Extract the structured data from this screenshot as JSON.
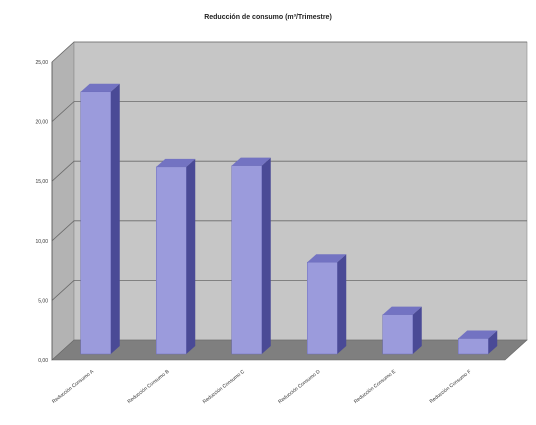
{
  "chart_data": {
    "type": "bar",
    "title": "Reducción de consumo (m³/Trimestre)",
    "categories": [
      "Reducción Consumo A",
      "Reducción Consumo B",
      "Reducción Consumo C",
      "Reducción Consumo D",
      "Reducción Consumo E",
      "Reducción Consumo F"
    ],
    "values": [
      22.0,
      15.7,
      15.8,
      7.7,
      3.3,
      1.3
    ],
    "yticks": [
      "0,00",
      "5,00",
      "10,00",
      "15,00",
      "20,00",
      "25,00"
    ],
    "ylim": [
      0,
      25
    ],
    "grid": true,
    "legend": "none",
    "colors": {
      "bar_front": "#9b9bdc",
      "bar_side": "#4a4a96",
      "bar_top": "#7373c2",
      "back_wall": "#c6c6c6",
      "side_wall": "#b3b3b3",
      "floor": "#7f7f7f",
      "gridline": "#6a6a6a"
    }
  }
}
